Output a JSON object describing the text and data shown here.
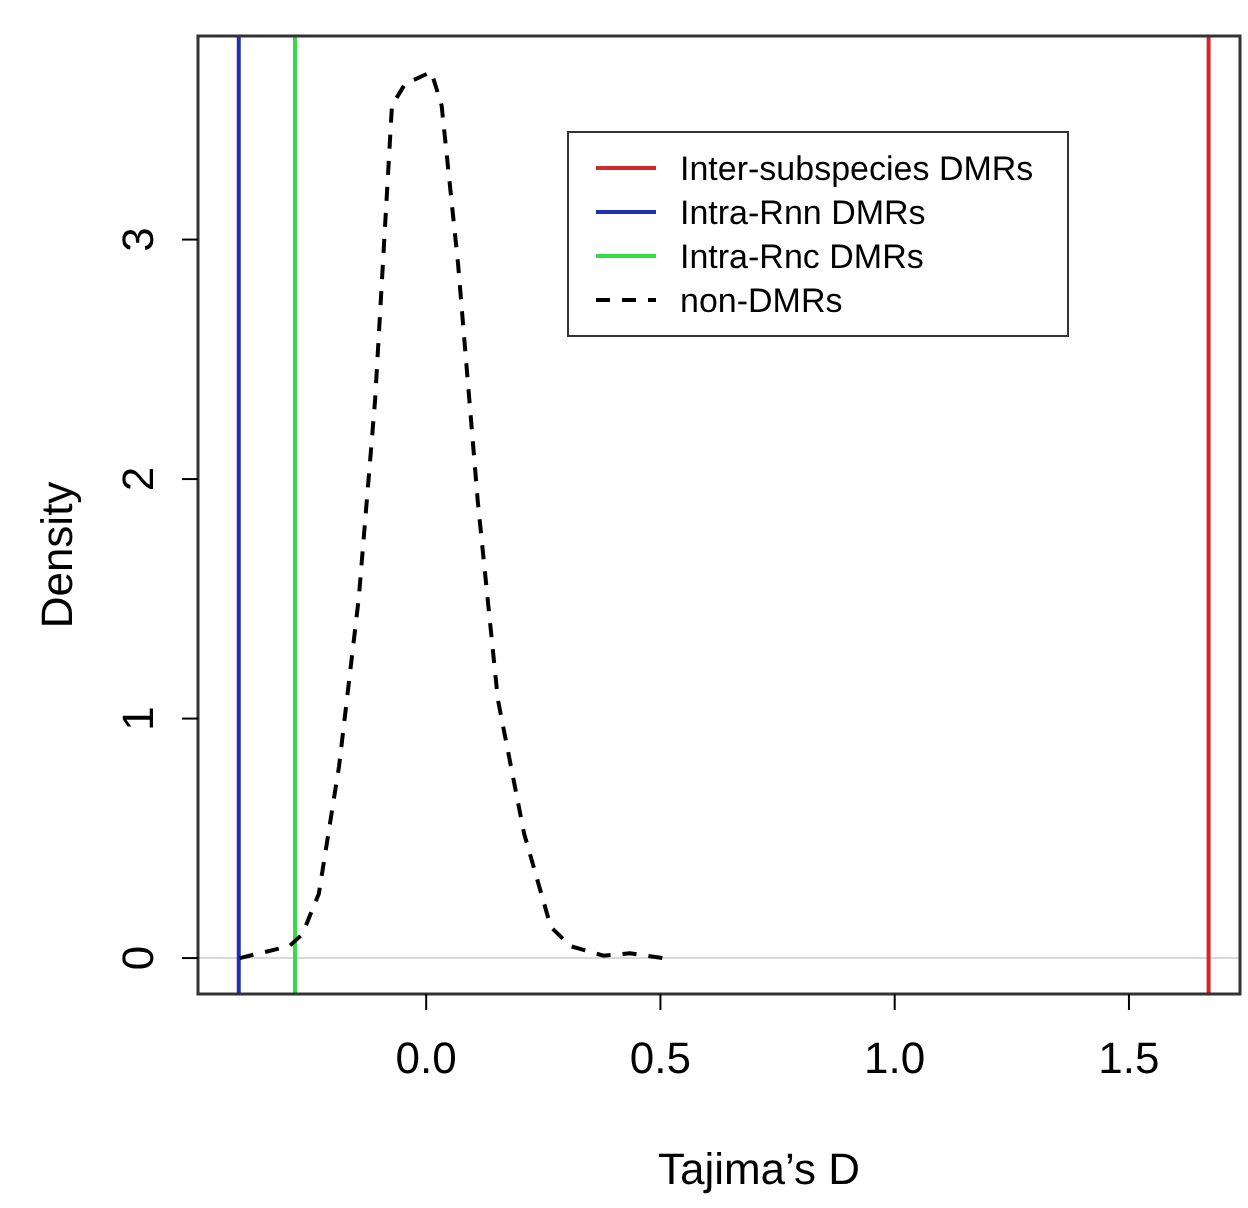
{
  "chart_data": {
    "type": "line",
    "xlabel": "Tajima’s D",
    "ylabel": "Density",
    "xlim": [
      -0.487,
      1.737
    ],
    "ylim": [
      -0.15,
      3.85
    ],
    "xticks": [
      {
        "value": 0,
        "label": "0.0"
      },
      0.5,
      {
        "value": 1,
        "label": "1.0"
      },
      1.5
    ],
    "yticks": [
      0,
      1,
      2,
      3
    ],
    "legend": "top right",
    "grid": false,
    "ref_lines": [
      {
        "axis": "y",
        "value": 0,
        "color": "#d9d9d9"
      }
    ],
    "series": [
      {
        "name": "Inter-subspecies DMRs",
        "color": "#d62728",
        "line_style": "solid",
        "x": [
          1.67,
          1.67
        ],
        "values": [
          -0.15,
          3.85
        ]
      },
      {
        "name": "Intra-Rnn DMRs",
        "color": "#1f2fb4",
        "line_style": "solid",
        "x": [
          -0.4,
          -0.4
        ],
        "values": [
          -0.15,
          3.85
        ]
      },
      {
        "name": "Intra-Rnc DMRs",
        "color": "#33dd44",
        "line_style": "solid",
        "x": [
          -0.28,
          -0.28
        ],
        "values": [
          -0.15,
          3.85
        ]
      },
      {
        "name": "non-DMRs",
        "color": "#000000",
        "line_style": "dashed",
        "x": [
          -0.398,
          -0.292,
          -0.264,
          -0.229,
          -0.186,
          -0.144,
          -0.109,
          -0.073,
          -0.045,
          0.011,
          0.033,
          0.068,
          0.11,
          0.153,
          0.209,
          0.266,
          0.308,
          0.378,
          0.435,
          0.504
        ],
        "values": [
          0,
          0.05,
          0.1,
          0.27,
          0.8,
          1.5,
          2.33,
          3.56,
          3.65,
          3.7,
          3.56,
          2.9,
          1.91,
          1.08,
          0.52,
          0.13,
          0.05,
          0.01,
          0.02,
          0
        ]
      }
    ]
  }
}
